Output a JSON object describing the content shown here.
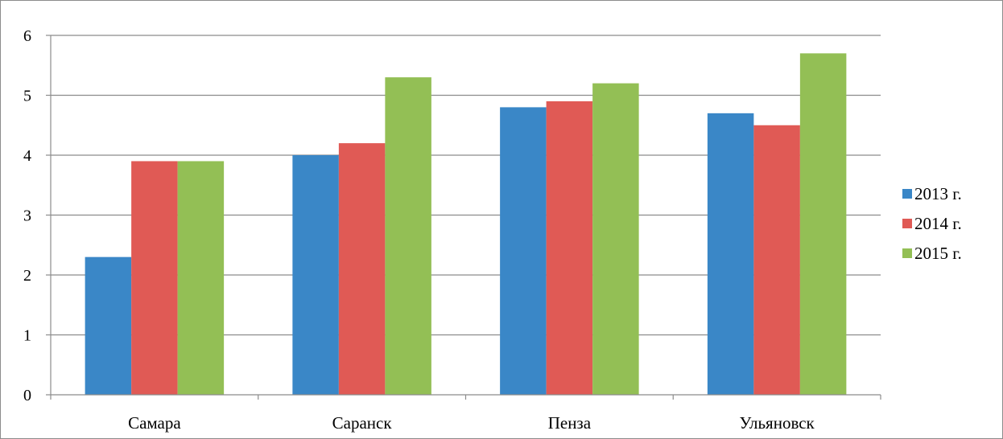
{
  "chart_data": {
    "type": "bar",
    "title": "",
    "xlabel": "",
    "ylabel": "",
    "categories": [
      "Самара",
      "Саранск",
      "Пенза",
      "Ульяновск"
    ],
    "series": [
      {
        "name": "2013 г.",
        "color": "#3a87c7",
        "values": [
          2.3,
          4.0,
          4.8,
          4.7
        ]
      },
      {
        "name": "2014 г.",
        "color": "#e05a55",
        "values": [
          3.9,
          4.2,
          4.9,
          4.5
        ]
      },
      {
        "name": "2015 г.",
        "color": "#93bf55",
        "values": [
          3.9,
          5.3,
          5.2,
          5.7
        ]
      }
    ],
    "ylim": [
      0,
      6
    ],
    "yticks": [
      "0",
      "1",
      "2",
      "3",
      "4",
      "5",
      "6"
    ],
    "grid": true,
    "legend_position": "right"
  }
}
